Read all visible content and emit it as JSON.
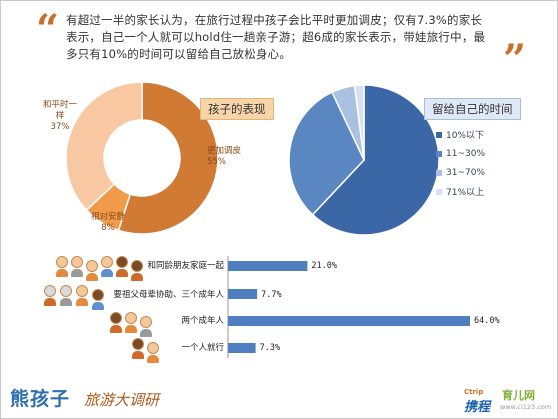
{
  "intro_text": "有超过一半的家长认为，在旅行过程中孩子会比平时更加调皮；仅有7.3%的家长表示，自己一个人就可以hold住一趟亲子游；超6成的家长表示，带娃旅行中，最多只有10%的时间可以留给自己放松身心。",
  "quote_open": "“",
  "quote_close": "”",
  "colors": {
    "orange_dark": "#d07a34",
    "orange_mid": "#f09a4a",
    "orange_light": "#f8c8a2",
    "blue_dark": "#3c67a6",
    "blue_mid": "#5a86c2",
    "blue_light": "#a9c0e0",
    "blue_pale": "#d5e1f1",
    "bar_blue": "#4f7ec1"
  },
  "chart_data": [
    {
      "type": "pie",
      "title": "孩子的表现",
      "slices": [
        {
          "label": "更加调皮",
          "value": 55,
          "display": "55%"
        },
        {
          "label": "相对安静",
          "value": 8,
          "display": "8%"
        },
        {
          "label": "和平时一样",
          "value": 37,
          "display": "37%"
        }
      ]
    },
    {
      "type": "pie",
      "title": "留给自己的时间",
      "slices": [
        {
          "label": "10%以下",
          "value": 62
        },
        {
          "label": "11~30%",
          "value": 31
        },
        {
          "label": "31~70%",
          "value": 5
        },
        {
          "label": "71%以上",
          "value": 2
        }
      ]
    },
    {
      "type": "bar",
      "categories": [
        "和同龄朋友家庭一起",
        "要祖父母辈协助、三个成年人",
        "两个成年人",
        "一个人就行"
      ],
      "values": [
        21.0,
        7.7,
        64.0,
        7.3
      ],
      "value_labels": [
        "21.0%",
        "7.7%",
        "64.0%",
        "7.3%"
      ],
      "ylim": [
        0,
        70
      ]
    }
  ],
  "footer": {
    "logo": "熊孩子",
    "subtitle": "旅游大调研",
    "brand_ctrip": "携程",
    "brand_ctrip_en": "Ctrip",
    "brand_yuer": "育儿网",
    "brand_url": "www.ci123.com"
  }
}
